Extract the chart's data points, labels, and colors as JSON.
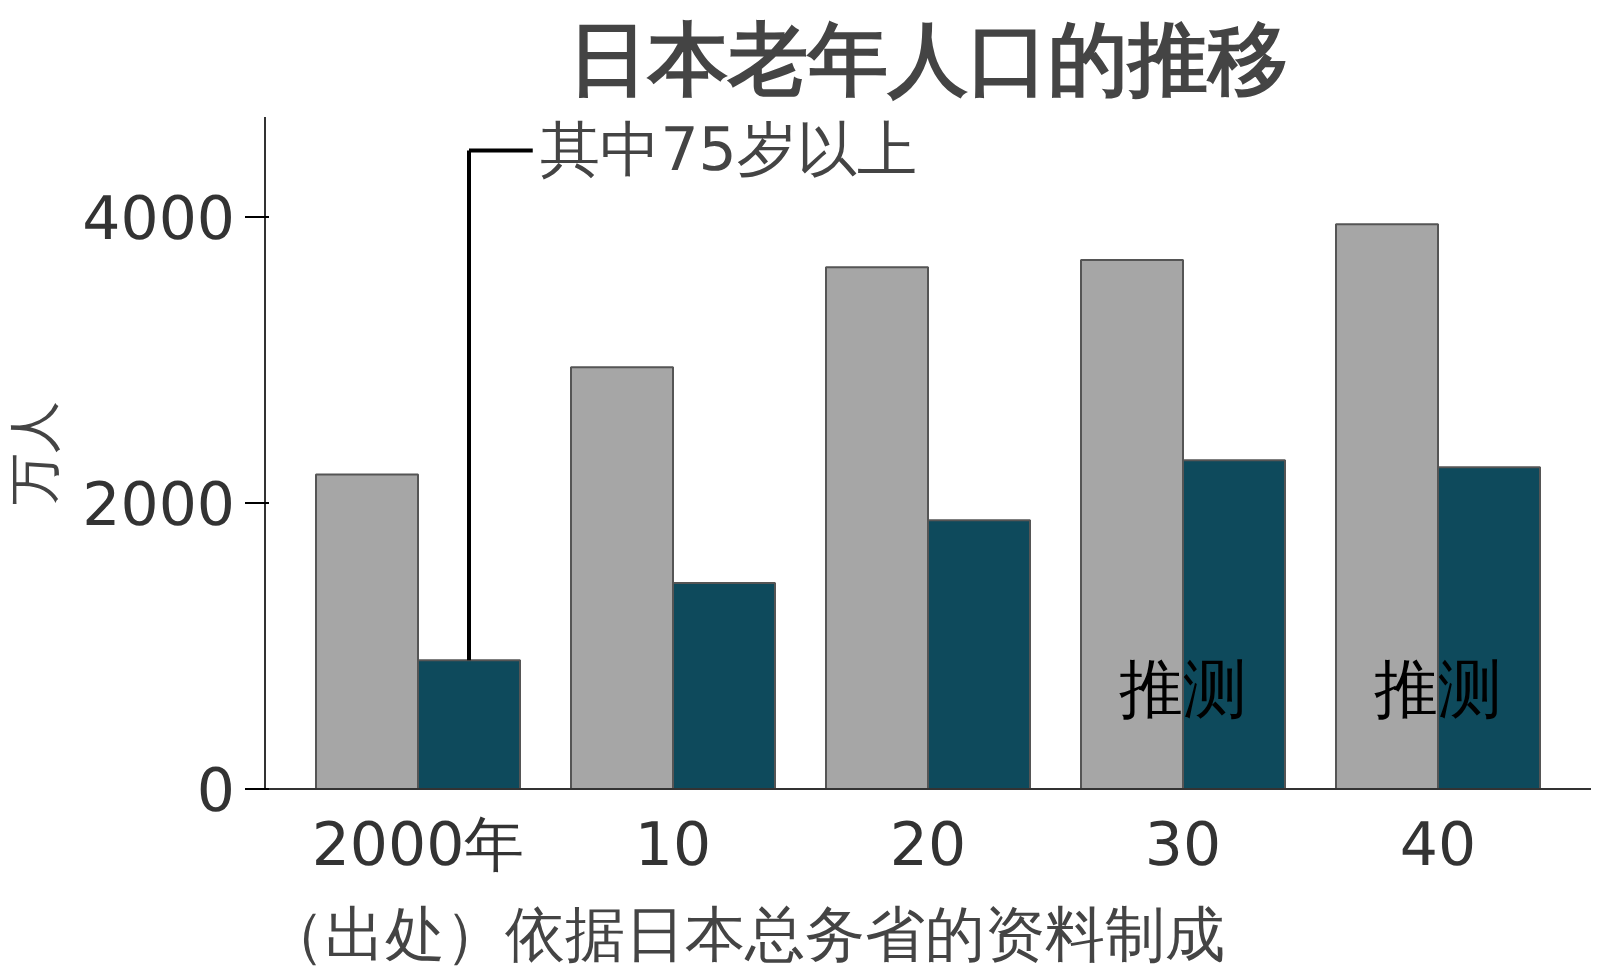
{
  "chart_data": {
    "type": "bar",
    "title": "日本老年人口的推移",
    "ylabel": "万人",
    "categories": [
      "2000年",
      "10",
      "20",
      "30",
      "40"
    ],
    "series": [
      {
        "color": "#a6a6a6",
        "values": [
          2200,
          2950,
          3650,
          3700,
          3950
        ]
      },
      {
        "name": "其中75岁以上",
        "color": "#0e4a5c",
        "values": [
          900,
          1440,
          1880,
          2300,
          2250
        ]
      }
    ],
    "ylim": [
      0,
      4700
    ],
    "yticks": [
      0,
      2000,
      4000
    ],
    "grid": false,
    "annotations": [
      {
        "text": "推测",
        "x": "30",
        "y": 700
      },
      {
        "text": "推测",
        "x": "40",
        "y": 700
      },
      "（出处）依据日本总务省的资料制成"
    ]
  }
}
